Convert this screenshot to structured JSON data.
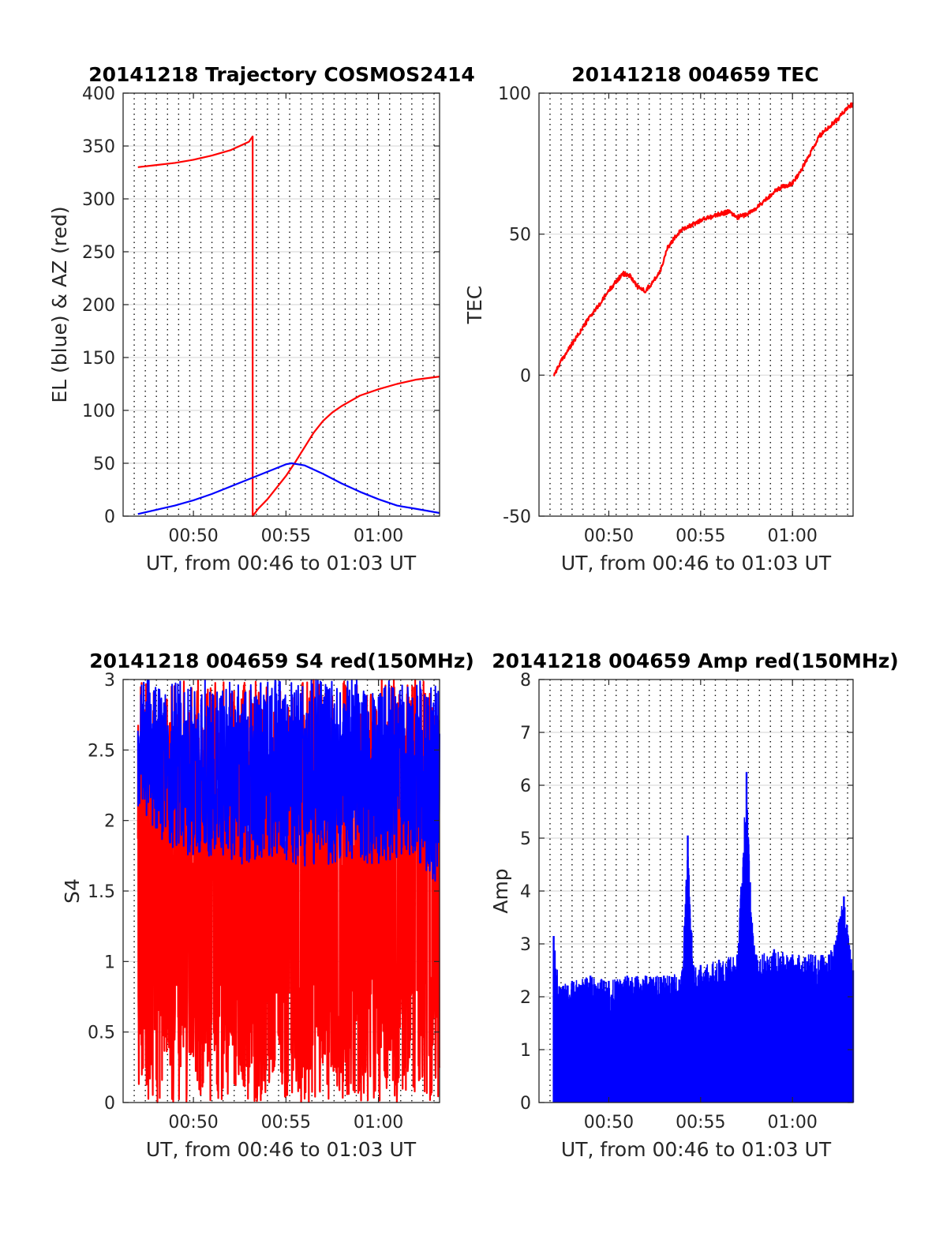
{
  "chart_data": [
    {
      "id": "traj",
      "type": "line",
      "title": "20141218 Trajectory COSMOS2414",
      "xlabel": "UT, from 00:46 to 01:03 UT",
      "ylabel": "EL (blue) & AZ (red)",
      "xlim": [
        46.2,
        63.3
      ],
      "ylim": [
        0,
        400
      ],
      "xticks": [
        50,
        55,
        60
      ],
      "xtick_labels": [
        "00:50",
        "00:55",
        "01:00"
      ],
      "yticks": [
        0,
        50,
        100,
        150,
        200,
        250,
        300,
        350,
        400
      ],
      "ytick_labels": [
        "0",
        "50",
        "100",
        "150",
        "200",
        "250",
        "300",
        "350",
        "400"
      ],
      "grid": true,
      "series": [
        {
          "color": "#ff0000",
          "x": [
            47.0,
            48.0,
            49.0,
            50.0,
            51.0,
            52.0,
            53.0,
            53.2,
            53.2,
            53.5,
            54.0,
            54.5,
            55.0,
            55.5,
            56.0,
            56.5,
            57.0,
            57.5,
            58.0,
            58.5,
            59.0,
            60.0,
            61.0,
            62.0,
            63.3
          ],
          "y": [
            330,
            332,
            334,
            337,
            341,
            346,
            354,
            359,
            0,
            7,
            16,
            27,
            38,
            51,
            65,
            79,
            90,
            98,
            104,
            109,
            114,
            120,
            125,
            129,
            132
          ]
        },
        {
          "color": "#0000ff",
          "x": [
            47.0,
            48.0,
            49.0,
            50.0,
            51.0,
            52.0,
            53.0,
            54.0,
            55.0,
            55.3,
            56.0,
            57.0,
            58.0,
            59.0,
            60.0,
            61.0,
            62.0,
            63.3
          ],
          "y": [
            2,
            6,
            10,
            15,
            21,
            28,
            35,
            42,
            49,
            50,
            48,
            40,
            31,
            23,
            16,
            10,
            7,
            3
          ]
        }
      ]
    },
    {
      "id": "tec",
      "type": "line",
      "title": "20141218 004659 TEC",
      "xlabel": "UT, from 00:46 to 01:03 UT",
      "ylabel": "TEC",
      "xlim": [
        46.2,
        63.3
      ],
      "ylim": [
        -50,
        100
      ],
      "xticks": [
        50,
        55,
        60
      ],
      "xtick_labels": [
        "00:50",
        "00:55",
        "01:00"
      ],
      "yticks": [
        -50,
        0,
        50,
        100
      ],
      "ytick_labels": [
        "-50",
        "0",
        "50",
        "100"
      ],
      "grid": true,
      "series": [
        {
          "color": "#ff0000",
          "x": [
            47.0,
            47.5,
            48.0,
            48.5,
            49.0,
            49.5,
            50.0,
            50.5,
            50.8,
            51.2,
            51.6,
            52.0,
            52.4,
            52.8,
            53.2,
            53.6,
            54.0,
            54.5,
            55.0,
            55.5,
            56.0,
            56.5,
            57.0,
            57.5,
            58.0,
            58.5,
            59.0,
            59.5,
            60.0,
            60.5,
            61.0,
            61.5,
            62.0,
            62.5,
            63.0,
            63.3
          ],
          "y": [
            0,
            6,
            11,
            16,
            21,
            25,
            30,
            34,
            36,
            35,
            31,
            30,
            33,
            37,
            45,
            49,
            52,
            53,
            55,
            56,
            57,
            58,
            56,
            57,
            59,
            62,
            65,
            67,
            68,
            73,
            79,
            85,
            88,
            91,
            95,
            96
          ]
        }
      ]
    },
    {
      "id": "s4",
      "type": "line",
      "title": "20141218 004659 S4 red(150MHz)",
      "xlabel": "UT, from 00:46 to 01:03 UT",
      "ylabel": "S4",
      "xlim": [
        46.2,
        63.3
      ],
      "ylim": [
        0,
        3
      ],
      "xticks": [
        50,
        55,
        60
      ],
      "xtick_labels": [
        "00:50",
        "00:55",
        "01:00"
      ],
      "yticks": [
        0,
        0.5,
        1,
        1.5,
        2,
        2.5,
        3
      ],
      "ytick_labels": [
        "0",
        "0.5",
        "1",
        "1.5",
        "2",
        "2.5",
        "3"
      ],
      "grid": true,
      "series": [
        {
          "color": "#ff0000",
          "x": [
            47.0,
            48.0,
            49.0,
            50.0,
            51.0,
            52.0,
            53.0,
            54.0,
            55.0,
            56.0,
            57.0,
            58.0,
            59.0,
            60.0,
            61.0,
            62.0,
            63.0,
            63.3
          ],
          "y_min": [
            0,
            0,
            0,
            0,
            0,
            0,
            0,
            0,
            0,
            0,
            0,
            0,
            0,
            0,
            0,
            0,
            0,
            0
          ],
          "y_max": [
            3,
            3,
            3,
            3,
            3,
            3,
            3,
            3,
            3,
            3,
            3,
            3,
            3,
            3,
            3,
            3,
            3,
            3
          ]
        },
        {
          "color": "#0000ff",
          "x": [
            47.0,
            48.0,
            49.0,
            50.0,
            51.0,
            52.0,
            53.0,
            54.0,
            55.0,
            56.0,
            57.0,
            58.0,
            59.0,
            60.0,
            61.0,
            62.0,
            63.0,
            63.3
          ],
          "y_min": [
            1.6,
            1.5,
            1.4,
            1.3,
            1.3,
            1.3,
            1.2,
            1.3,
            1.3,
            1.2,
            1.2,
            1.3,
            1.3,
            1.2,
            1.3,
            1.3,
            1.1,
            1.1
          ],
          "y_max": [
            3,
            3,
            3,
            3,
            3,
            3,
            3,
            3,
            3,
            3,
            3,
            3,
            3,
            3,
            3,
            3,
            3,
            2.9
          ]
        }
      ]
    },
    {
      "id": "amp",
      "type": "line",
      "title": "20141218 004659 Amp red(150MHz)",
      "xlabel": "UT, from 00:46 to 01:03 UT",
      "ylabel": "Amp",
      "xlim": [
        46.2,
        63.3
      ],
      "ylim": [
        0,
        8
      ],
      "xticks": [
        50,
        55,
        60
      ],
      "xtick_labels": [
        "00:50",
        "00:55",
        "01:00"
      ],
      "yticks": [
        0,
        1,
        2,
        3,
        4,
        5,
        6,
        7,
        8
      ],
      "ytick_labels": [
        "0",
        "1",
        "2",
        "3",
        "4",
        "5",
        "6",
        "7",
        "8"
      ],
      "grid": true,
      "series": [
        {
          "color": "#0000ff",
          "x": [
            47.0,
            47.3,
            48.0,
            49.0,
            50.0,
            51.0,
            52.0,
            53.0,
            54.0,
            54.3,
            54.6,
            55.0,
            56.0,
            57.0,
            57.5,
            57.8,
            58.0,
            59.0,
            60.0,
            61.0,
            62.0,
            62.8,
            63.3
          ],
          "y": [
            3.15,
            2.2,
            2.3,
            2.4,
            2.3,
            2.4,
            2.4,
            2.4,
            2.5,
            5.05,
            2.6,
            2.6,
            2.7,
            2.8,
            6.25,
            3.4,
            2.8,
            2.9,
            2.8,
            2.8,
            2.8,
            3.9,
            2.5
          ]
        }
      ]
    }
  ]
}
